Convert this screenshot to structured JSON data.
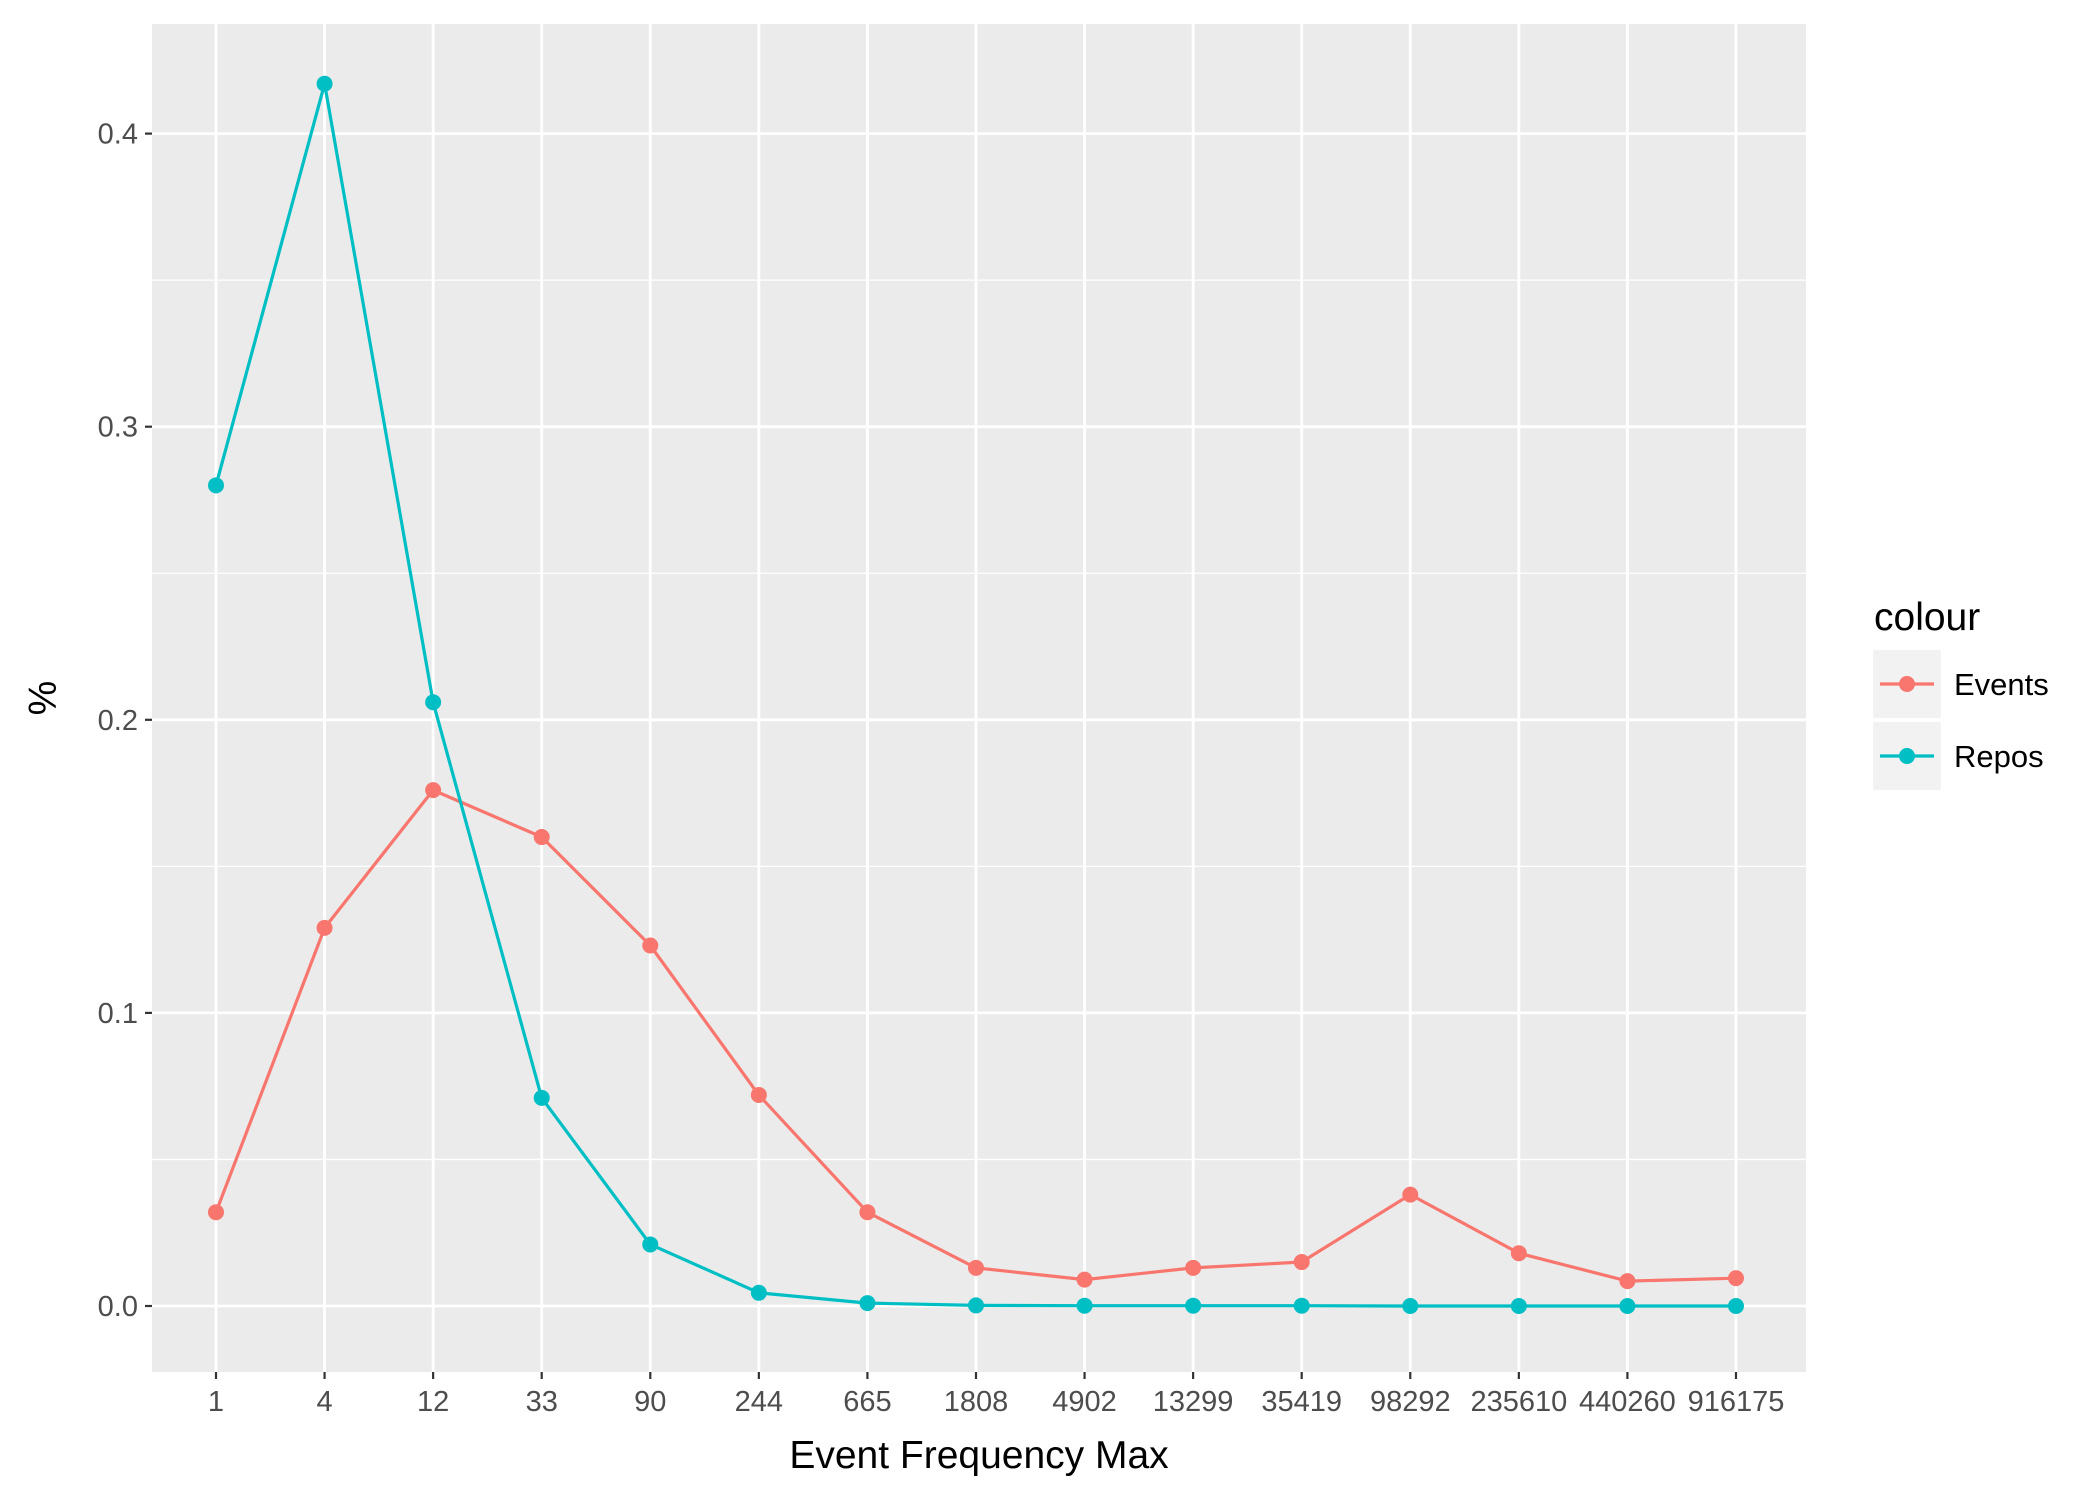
{
  "chart_data": {
    "type": "line",
    "title": "",
    "xlabel": "Event Frequency Max",
    "ylabel": "%",
    "categories": [
      "1",
      "4",
      "12",
      "33",
      "90",
      "244",
      "665",
      "1808",
      "4902",
      "13299",
      "35419",
      "98292",
      "235610",
      "440260",
      "916175"
    ],
    "ylim": [
      -0.02,
      0.435
    ],
    "yticks": [
      0.0,
      0.1,
      0.2,
      0.3,
      0.4
    ],
    "ytick_labels": [
      "0.0",
      "0.1",
      "0.2",
      "0.3",
      "0.4"
    ],
    "grid": true,
    "legend": {
      "title": "colour",
      "position": "right"
    },
    "series": [
      {
        "name": "Events",
        "color": "#F8766D",
        "values": [
          0.032,
          0.129,
          0.176,
          0.16,
          0.123,
          0.072,
          0.032,
          0.013,
          0.009,
          0.013,
          0.015,
          0.038,
          0.018,
          0.0085,
          0.0095
        ]
      },
      {
        "name": "Repos",
        "color": "#00BFC4",
        "values": [
          0.28,
          0.417,
          0.206,
          0.071,
          0.021,
          0.0045,
          0.001,
          0.0002,
          0.0001,
          0.0001,
          0.0001,
          0.0,
          0.0,
          0.0,
          0.0
        ]
      }
    ]
  }
}
